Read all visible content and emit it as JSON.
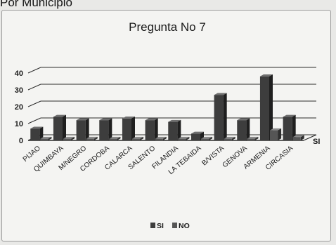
{
  "page": {
    "header": "Por Municipio"
  },
  "colors": {
    "si_front": "#3d3d3d",
    "si_side": "#1f1f1f",
    "si_top": "#6f6f6f",
    "no_front": "#555555",
    "no_side": "#2e2e2e",
    "no_top": "#8a8a8a",
    "grid": "#2b2b2b"
  },
  "chart_data": {
    "type": "bar",
    "title": "Pregunta No 7",
    "categories": [
      "PIJAO",
      "QUIMBAYA",
      "M/NEGRO",
      "CORDOBA",
      "CALARCA",
      "SALENTO",
      "FILANDIA",
      "LA TEBAIDA",
      "B/VISTA",
      "GENOVA",
      "ARMENIA",
      "CIRCASIA"
    ],
    "series": [
      {
        "name": "SI",
        "values": [
          7,
          14,
          12,
          12,
          13,
          12,
          11,
          4,
          27,
          12,
          38,
          14
        ]
      },
      {
        "name": "NO",
        "values": [
          1,
          1,
          1,
          1,
          1,
          1,
          1,
          1,
          1,
          1,
          6,
          2
        ]
      }
    ],
    "yticks": [
      0,
      10,
      20,
      30,
      40
    ],
    "ylim": [
      0,
      40
    ],
    "depth_axis_label": "SI",
    "legend": {
      "position": "bottom",
      "entries": [
        "SI",
        "NO"
      ]
    },
    "grid": true
  }
}
